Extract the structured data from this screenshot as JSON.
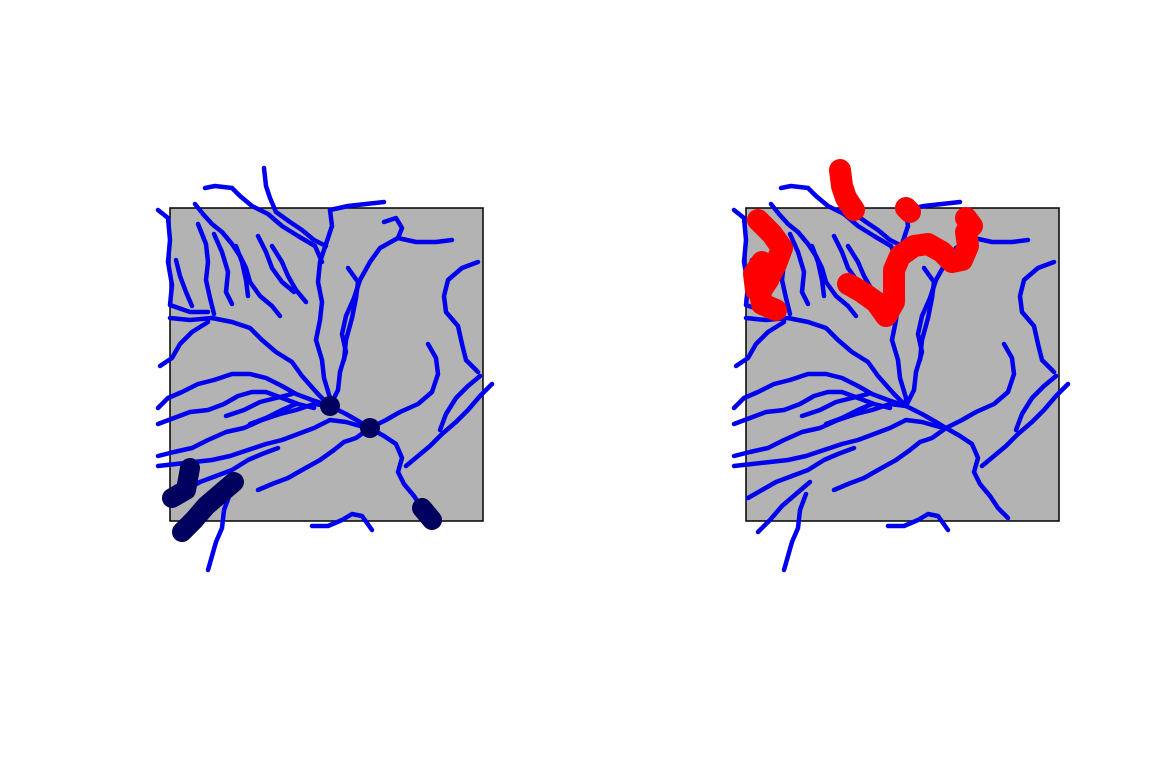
{
  "figure": {
    "panels": [
      {
        "key": "left",
        "highlight_color": "#00005e",
        "highlight_style": "dots-and-segments"
      },
      {
        "key": "right",
        "highlight_color": "#ff0000",
        "highlight_style": "segments"
      }
    ],
    "network_color": "#0000ee",
    "panel_fill": "#b3b3b3"
  }
}
